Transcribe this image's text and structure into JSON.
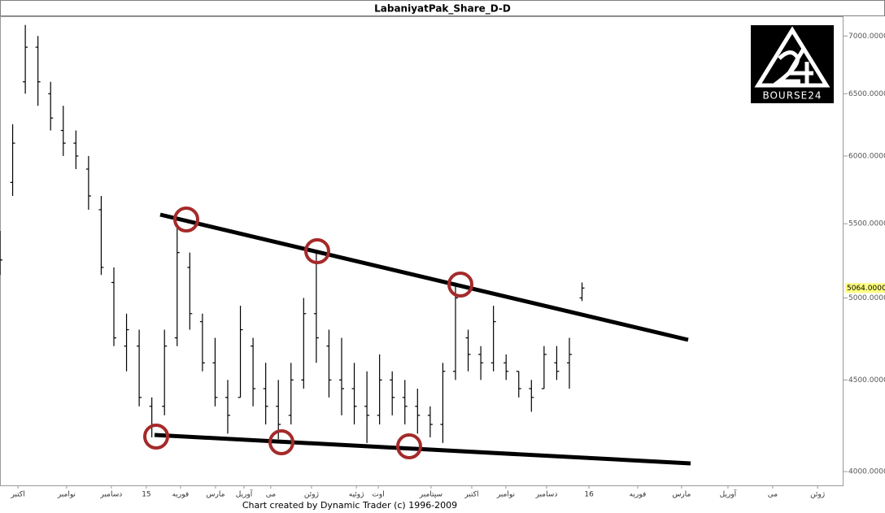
{
  "chart_data": {
    "type": "ohlc",
    "title": "LabaniyatPak_Share_D-D",
    "footer": "Chart created by Dynamic Trader  (c)  1996-2009",
    "logo_text": "BOURSE24",
    "log_scale": true,
    "color": "#000000",
    "xlim": [
      0,
      400
    ],
    "ylim": [
      3930,
      7180
    ],
    "yticks": [
      {
        "value": 4000,
        "label": "4000.0000"
      },
      {
        "value": 4500,
        "label": "4500.0000"
      },
      {
        "value": 5000,
        "label": "5000.0000"
      },
      {
        "value": 5500,
        "label": "5500.0000"
      },
      {
        "value": 6000,
        "label": "6000.0000"
      },
      {
        "value": 6500,
        "label": "6500.0000"
      },
      {
        "value": 7000,
        "label": "7000.0000"
      }
    ],
    "last_price": {
      "value": 5064,
      "label": "5064.0000"
    },
    "xticks": [
      {
        "value": 8.5,
        "label": "اکتبر"
      },
      {
        "value": 31.6,
        "label": "نوامبر"
      },
      {
        "value": 52.8,
        "label": "دسامبر"
      },
      {
        "value": 69.4,
        "label": "15"
      },
      {
        "value": 85.6,
        "label": "فوریه"
      },
      {
        "value": 102.2,
        "label": "مارس"
      },
      {
        "value": 115.7,
        "label": "آوریل"
      },
      {
        "value": 128.4,
        "label": "می"
      },
      {
        "value": 147.7,
        "label": "ژوئن"
      },
      {
        "value": 169,
        "label": "ژوئیه"
      },
      {
        "value": 179.4,
        "label": "اوت"
      },
      {
        "value": 204.4,
        "label": "سپتامبر"
      },
      {
        "value": 223.7,
        "label": "اکتبر"
      },
      {
        "value": 239.9,
        "label": "نوامبر"
      },
      {
        "value": 259.2,
        "label": "دسامبر"
      },
      {
        "value": 279.3,
        "label": "16"
      },
      {
        "value": 302.4,
        "label": "فوریه"
      },
      {
        "value": 323.2,
        "label": "مارس"
      },
      {
        "value": 345.2,
        "label": "آوریل"
      },
      {
        "value": 366.4,
        "label": "می"
      },
      {
        "value": 387.7,
        "label": "ژوئن"
      }
    ],
    "x": [
      0,
      6,
      12,
      18,
      24,
      30,
      36,
      42,
      48,
      54,
      60,
      66,
      72,
      78,
      84,
      90,
      96,
      102,
      108,
      114,
      120,
      126,
      132,
      138,
      144,
      150,
      156,
      162,
      168,
      174,
      180,
      186,
      192,
      198,
      204,
      210,
      216,
      222,
      228,
      234,
      240,
      246,
      252,
      258,
      264,
      270,
      276
    ],
    "high": [
      5450,
      6250,
      7100,
      7000,
      6600,
      6400,
      6200,
      6000,
      5700,
      5200,
      4900,
      4800,
      4400,
      4800,
      5500,
      5300,
      4900,
      4750,
      4500,
      4950,
      4750,
      4600,
      4500,
      4600,
      5000,
      5300,
      4800,
      4750,
      4600,
      4550,
      4650,
      4550,
      4500,
      4450,
      4350,
      4600,
      5100,
      4800,
      4700,
      4950,
      4650,
      4550,
      4500,
      4700,
      4700,
      4750,
      5100
    ],
    "low": [
      5150,
      5700,
      6500,
      6400,
      6200,
      6000,
      5900,
      5600,
      5150,
      4700,
      4550,
      4350,
      4180,
      4300,
      4700,
      4800,
      4550,
      4350,
      4200,
      4400,
      4350,
      4250,
      4170,
      4250,
      4450,
      4600,
      4400,
      4300,
      4250,
      4150,
      4250,
      4300,
      4250,
      4200,
      4180,
      4150,
      4500,
      4550,
      4500,
      4550,
      4500,
      4400,
      4320,
      4450,
      4500,
      4450,
      4980
    ],
    "open": [
      5300,
      5800,
      6600,
      6900,
      6500,
      6200,
      6100,
      5900,
      5600,
      5100,
      4700,
      4700,
      4350,
      4350,
      4750,
      5200,
      4850,
      4600,
      4400,
      4400,
      4700,
      4450,
      4350,
      4300,
      4500,
      4900,
      4700,
      4500,
      4450,
      4350,
      4300,
      4500,
      4400,
      4350,
      4300,
      4250,
      4550,
      4750,
      4650,
      4600,
      4600,
      4550,
      4450,
      4450,
      4600,
      4600,
      5000
    ],
    "close": [
      5250,
      6100,
      6900,
      6600,
      6300,
      6100,
      6000,
      5700,
      5200,
      4750,
      4800,
      4400,
      4250,
      4700,
      5300,
      4900,
      4600,
      4400,
      4300,
      4800,
      4450,
      4350,
      4250,
      4500,
      4900,
      4750,
      4500,
      4450,
      4350,
      4300,
      4500,
      4400,
      4350,
      4300,
      4250,
      4550,
      5000,
      4650,
      4600,
      4850,
      4550,
      4450,
      4400,
      4650,
      4550,
      4650,
      5064
    ]
  }
}
